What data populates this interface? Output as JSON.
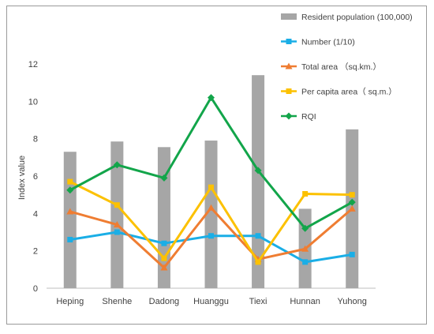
{
  "chart_data": {
    "type": "bar",
    "categories": [
      "Heping",
      "Shenhe",
      "Dadong",
      "Huanggu",
      "Tiexi",
      "Hunnan",
      "Yuhong"
    ],
    "ylabel": "Index value",
    "xlabel": "",
    "ylim": [
      0,
      12
    ],
    "yticks": [
      "0",
      "2",
      "4",
      "6",
      "8",
      "10",
      "12"
    ],
    "grid": false,
    "legend_position": "top-right",
    "series": [
      {
        "name": "Resident population (100,000)",
        "type": "bar",
        "color": "#a6a6a6",
        "values": [
          7.3,
          7.85,
          7.55,
          7.9,
          11.4,
          4.25,
          8.5
        ]
      },
      {
        "name": "Number (1/10)",
        "type": "line",
        "marker": "square",
        "color": "#1aaee6",
        "values": [
          2.6,
          3.0,
          2.4,
          2.8,
          2.8,
          1.4,
          1.8
        ]
      },
      {
        "name": "Total area （sq.km.）",
        "type": "line",
        "marker": "triangle",
        "color": "#ef7d32",
        "values": [
          4.1,
          3.4,
          1.1,
          4.3,
          1.55,
          2.1,
          4.25
        ]
      },
      {
        "name": "Per capita area（ sq.m.）",
        "type": "line",
        "marker": "square",
        "color": "#fcc101",
        "values": [
          5.7,
          4.45,
          1.6,
          5.4,
          1.4,
          5.05,
          5.0
        ]
      },
      {
        "name": "RQI",
        "type": "line",
        "marker": "diamond",
        "color": "#12a54a",
        "values": [
          5.25,
          6.6,
          5.9,
          10.2,
          6.3,
          3.2,
          4.6
        ]
      }
    ]
  }
}
